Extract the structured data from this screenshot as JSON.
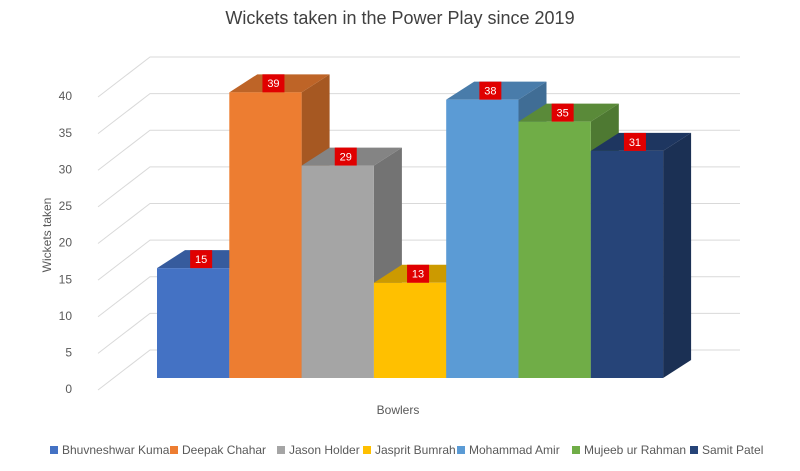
{
  "chart_data": {
    "type": "bar3d",
    "title": "Wickets taken in the Power Play since 2019",
    "x_label": "Bowlers",
    "y_label": "Wickets taken",
    "categories": [
      "Bhuvneshwar Kumar",
      "Deepak Chahar",
      "Jason Holder",
      "Jasprit Bumrah",
      "Mohammad Amir",
      "Mujeeb ur Rahman",
      "Samit Patel"
    ],
    "values": [
      15,
      39,
      29,
      13,
      38,
      35,
      31
    ],
    "colors": [
      "#4472c4",
      "#ed7d31",
      "#a5a5a5",
      "#ffc000",
      "#5b9bd5",
      "#70ad47",
      "#264478"
    ],
    "ylim": [
      0,
      40
    ],
    "yticks": [
      0,
      5,
      10,
      15,
      20,
      25,
      30,
      35,
      40
    ],
    "grid": true,
    "legend": "bottom"
  }
}
